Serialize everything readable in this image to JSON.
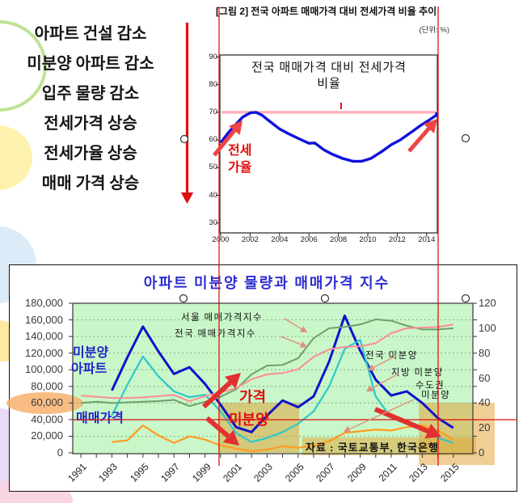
{
  "left_panel": {
    "items": [
      "아파트 건설 감소",
      "미분양 아파트 감소",
      "입주 물량 감소",
      "전세가격 상승",
      "전세가율 상승",
      "매매 가격 상승"
    ]
  },
  "colors": {
    "accent_red": "#e01010",
    "jeonse_line": "#1010dd",
    "reference_pink": "#ffaab8",
    "national_unsold": "#1111cc",
    "regional_unsold": "#2cc9c9",
    "metro_unsold": "#ff9c20",
    "seoul_index": "#6fa06a",
    "national_index": "#ff8b95",
    "plot_green": "#c9f7c9",
    "highlight_tan": "rgba(225,158,45,0.5)"
  },
  "chart_data": [
    {
      "id": "jeonse_ratio_trend",
      "type": "line",
      "title": "[그림 2] 전국 아파트 매매가격 대비 전세가격 비율 추이",
      "unit_label": "(단위: %)",
      "inner_title_line1": "전국 매매가격 대비 전세가격",
      "inner_title_line2": "비율",
      "ylim": [
        30,
        90
      ],
      "yticks": [
        90,
        80,
        70,
        60,
        50,
        40,
        30
      ],
      "xticks": [
        2000,
        2002,
        2004,
        2006,
        2008,
        2010,
        2012,
        2014
      ],
      "xlim": [
        2000,
        2015
      ],
      "grid": false,
      "reference_line": {
        "value": 70
      },
      "series": [
        {
          "name": "전세가율",
          "label_line1": "전세",
          "label_line2": "가율",
          "points": [
            [
              2000,
              59
            ],
            [
              2000.5,
              62.5
            ],
            [
              2001,
              65.5
            ],
            [
              2001.5,
              68.3
            ],
            [
              2002,
              69.8
            ],
            [
              2002.4,
              70
            ],
            [
              2002.8,
              69
            ],
            [
              2003.2,
              67.3
            ],
            [
              2004,
              64
            ],
            [
              2004.6,
              62.3
            ],
            [
              2005.3,
              60.5
            ],
            [
              2006,
              58.8
            ],
            [
              2006.4,
              58.9
            ],
            [
              2007,
              56.5
            ],
            [
              2007.6,
              54.8
            ],
            [
              2008.3,
              53.3
            ],
            [
              2009,
              52.3
            ],
            [
              2009.6,
              52.3
            ],
            [
              2010.2,
              53.3
            ],
            [
              2011,
              56
            ],
            [
              2011.6,
              58.3
            ],
            [
              2012.2,
              60
            ],
            [
              2013,
              63
            ],
            [
              2013.6,
              65.3
            ],
            [
              2014.2,
              67.3
            ],
            [
              2014.7,
              69
            ],
            [
              2015,
              70
            ]
          ]
        }
      ]
    },
    {
      "id": "unsold_vs_price_index",
      "type": "line",
      "title": "아파트 미분양 물량과 매매가격 지수",
      "x_years": [
        1991,
        1992,
        1993,
        1994,
        1995,
        1996,
        1997,
        1998,
        1999,
        2000,
        2001,
        2002,
        2003,
        2004,
        2005,
        2006,
        2007,
        2008,
        2009,
        2010,
        2011,
        2012,
        2013,
        2014,
        2015
      ],
      "x_tick_labels": [
        "1991",
        "1993",
        "1995",
        "1997",
        "1999",
        "2001",
        "2003",
        "2005",
        "2007",
        "2009",
        "2011",
        "2013",
        "2015"
      ],
      "left_axis": {
        "range": [
          0,
          180000
        ],
        "tick_labels": [
          "180,000",
          "160,000",
          "140,000",
          "120,000",
          "100,000",
          "80,000",
          "60,000",
          "40,000",
          "20,000",
          "0"
        ],
        "tick_values": [
          180000,
          160000,
          140000,
          120000,
          100000,
          80000,
          60000,
          40000,
          20000,
          0
        ]
      },
      "right_axis": {
        "range": [
          0,
          120
        ],
        "tick_values": [
          120,
          100,
          80,
          60,
          40,
          20,
          0
        ]
      },
      "grid": true,
      "series": [
        {
          "name": "전국 미분양",
          "axis": "left",
          "color": "#1111cc",
          "width": 3,
          "values": [
            null,
            null,
            75000,
            115000,
            152000,
            122000,
            95000,
            103000,
            83000,
            58000,
            31000,
            25000,
            45000,
            63000,
            55000,
            68000,
            110000,
            165000,
            123000,
            88000,
            69000,
            74000,
            60000,
            42000,
            30000
          ]
        },
        {
          "name": "지방 미분양",
          "axis": "left",
          "color": "#2cc9c9",
          "width": 2.2,
          "values": [
            null,
            null,
            45000,
            82000,
            116000,
            92000,
            74000,
            67000,
            70000,
            50000,
            24000,
            13000,
            18000,
            25000,
            35000,
            50000,
            80000,
            125000,
            136000,
            68000,
            42000,
            35000,
            28000,
            18000,
            12000
          ]
        },
        {
          "name": "수도권 미분양",
          "axis": "left",
          "color": "#ff9c20",
          "width": 2.2,
          "values": [
            null,
            null,
            13000,
            15000,
            33000,
            21000,
            12000,
            20000,
            16000,
            9000,
            5000,
            2000,
            4000,
            8000,
            6000,
            9000,
            14000,
            24000,
            26000,
            28000,
            27000,
            31000,
            33000,
            27000,
            16000
          ]
        },
        {
          "name": "서울 매매가격지수",
          "axis": "right",
          "color": "#6fa06a",
          "width": 2,
          "values": [
            40,
            41,
            40,
            40.5,
            41,
            41.5,
            42.5,
            37.5,
            41,
            45,
            51,
            63,
            70,
            70.5,
            76,
            92,
            100,
            101,
            103,
            107,
            106,
            102,
            99,
            99,
            100
          ]
        },
        {
          "name": "전국 매매가격지수",
          "axis": "right",
          "color": "#ff8b95",
          "width": 2,
          "values": [
            46,
            45,
            44,
            44,
            44.5,
            45.5,
            46.5,
            41.5,
            45.5,
            48.5,
            52,
            59,
            63,
            64,
            67,
            77,
            83,
            85,
            85.5,
            88,
            96,
            100,
            100.5,
            101,
            103
          ]
        }
      ],
      "annotations": {
        "unsold_label_line1": "미분양",
        "unsold_label_line2": "아파트",
        "price_label": "매매가격",
        "callout_seoul": "서울 매매가격지수",
        "callout_national_price": "전국 매매가격지수",
        "callout_national_unsold": "전국 미분양",
        "callout_regional_unsold": "지방 미분양",
        "callout_metro_line1": "수도권",
        "callout_metro_line2": "미분양",
        "arrow_label_price": "가격",
        "arrow_label_unsold": "미분양"
      },
      "source": "자료 : 국토교통부, 한국은행"
    }
  ]
}
